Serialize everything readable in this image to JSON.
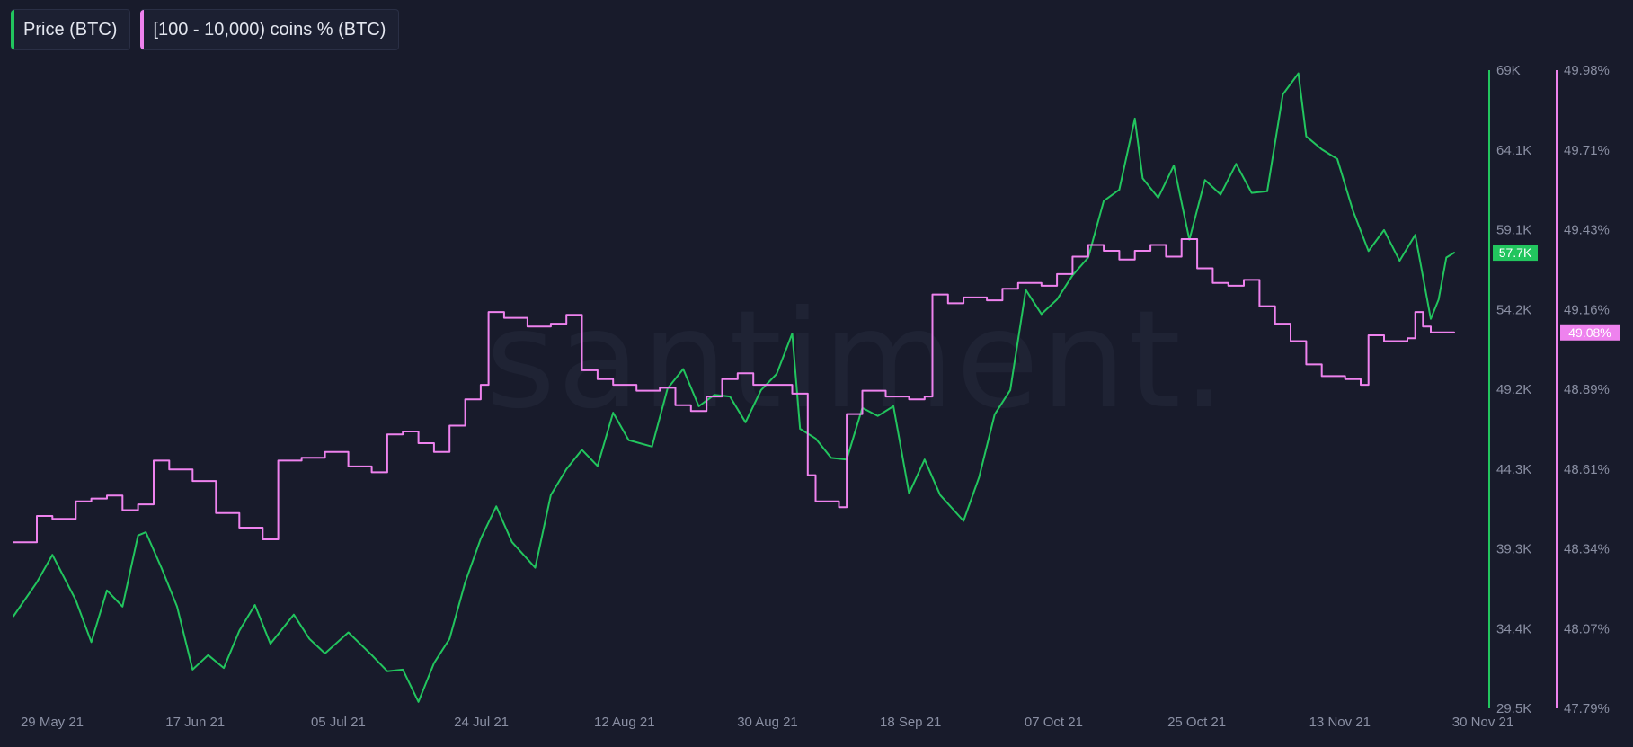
{
  "watermark": "santiment.",
  "colors": {
    "background": "#181b2b",
    "price": "#22c55e",
    "holders": "#ee82ee",
    "tick_text": "#8a8fa3"
  },
  "legend": [
    {
      "label": "Price (BTC)",
      "color": "#22c55e"
    },
    {
      "label": "[100 - 10,000) coins % (BTC)",
      "color": "#ee82ee"
    }
  ],
  "chart_data": {
    "type": "line",
    "title": "",
    "xlabel": "",
    "grid": false,
    "legend_position": "top-left",
    "x_range": [
      "2021-05-29",
      "2021-11-30"
    ],
    "x_ticks": [
      "29 May 21",
      "17 Jun 21",
      "05 Jul 21",
      "24 Jul 21",
      "12 Aug 21",
      "30 Aug 21",
      "18 Sep 21",
      "07 Oct 21",
      "25 Oct 21",
      "13 Nov 21",
      "30 Nov 21"
    ],
    "y_axes": [
      {
        "id": "price",
        "position": "right",
        "range": [
          29500,
          69000
        ],
        "ticks": [
          "69K",
          "64.1K",
          "59.1K",
          "54.2K",
          "49.2K",
          "44.3K",
          "39.3K",
          "34.4K",
          "29.5K"
        ],
        "current_label": "57.7K",
        "current_value": 57700
      },
      {
        "id": "holders",
        "position": "right",
        "range": [
          47.79,
          49.98
        ],
        "ticks": [
          "49.98%",
          "49.71%",
          "49.43%",
          "49.16%",
          "48.89%",
          "48.61%",
          "48.34%",
          "48.07%",
          "47.79%"
        ],
        "current_label": "49.08%",
        "current_value": 49.08
      }
    ],
    "series": [
      {
        "name": "Price (BTC)",
        "axis": "price",
        "color": "#22c55e",
        "points": [
          [
            "2021-05-29",
            35200
          ],
          [
            "2021-06-01",
            37300
          ],
          [
            "2021-06-03",
            39000
          ],
          [
            "2021-06-06",
            36200
          ],
          [
            "2021-06-08",
            33600
          ],
          [
            "2021-06-10",
            36800
          ],
          [
            "2021-06-12",
            35800
          ],
          [
            "2021-06-14",
            40200
          ],
          [
            "2021-06-15",
            40400
          ],
          [
            "2021-06-17",
            38200
          ],
          [
            "2021-06-19",
            35800
          ],
          [
            "2021-06-21",
            31900
          ],
          [
            "2021-06-23",
            32800
          ],
          [
            "2021-06-25",
            32000
          ],
          [
            "2021-06-27",
            34300
          ],
          [
            "2021-06-29",
            35900
          ],
          [
            "2021-07-01",
            33500
          ],
          [
            "2021-07-04",
            35300
          ],
          [
            "2021-07-06",
            33800
          ],
          [
            "2021-07-08",
            32900
          ],
          [
            "2021-07-11",
            34200
          ],
          [
            "2021-07-14",
            32800
          ],
          [
            "2021-07-16",
            31800
          ],
          [
            "2021-07-18",
            31900
          ],
          [
            "2021-07-20",
            29900
          ],
          [
            "2021-07-22",
            32300
          ],
          [
            "2021-07-24",
            33800
          ],
          [
            "2021-07-26",
            37300
          ],
          [
            "2021-07-28",
            40000
          ],
          [
            "2021-07-30",
            42000
          ],
          [
            "2021-08-01",
            39800
          ],
          [
            "2021-08-04",
            38200
          ],
          [
            "2021-08-06",
            42700
          ],
          [
            "2021-08-08",
            44300
          ],
          [
            "2021-08-10",
            45500
          ],
          [
            "2021-08-12",
            44500
          ],
          [
            "2021-08-14",
            47800
          ],
          [
            "2021-08-16",
            46100
          ],
          [
            "2021-08-19",
            45700
          ],
          [
            "2021-08-21",
            49300
          ],
          [
            "2021-08-23",
            50500
          ],
          [
            "2021-08-25",
            48200
          ],
          [
            "2021-08-27",
            48900
          ],
          [
            "2021-08-29",
            48800
          ],
          [
            "2021-08-31",
            47200
          ],
          [
            "2021-09-02",
            49200
          ],
          [
            "2021-09-04",
            50200
          ],
          [
            "2021-09-06",
            52700
          ],
          [
            "2021-09-07",
            46800
          ],
          [
            "2021-09-09",
            46200
          ],
          [
            "2021-09-11",
            45000
          ],
          [
            "2021-09-13",
            44900
          ],
          [
            "2021-09-15",
            48100
          ],
          [
            "2021-09-17",
            47600
          ],
          [
            "2021-09-19",
            48200
          ],
          [
            "2021-09-21",
            42800
          ],
          [
            "2021-09-23",
            44900
          ],
          [
            "2021-09-25",
            42700
          ],
          [
            "2021-09-28",
            41100
          ],
          [
            "2021-09-30",
            43800
          ],
          [
            "2021-10-02",
            47700
          ],
          [
            "2021-10-04",
            49200
          ],
          [
            "2021-10-06",
            55400
          ],
          [
            "2021-10-08",
            53900
          ],
          [
            "2021-10-10",
            54800
          ],
          [
            "2021-10-12",
            56300
          ],
          [
            "2021-10-14",
            57400
          ],
          [
            "2021-10-16",
            60900
          ],
          [
            "2021-10-18",
            61600
          ],
          [
            "2021-10-20",
            66000
          ],
          [
            "2021-10-21",
            62300
          ],
          [
            "2021-10-23",
            61100
          ],
          [
            "2021-10-25",
            63100
          ],
          [
            "2021-10-27",
            58500
          ],
          [
            "2021-10-29",
            62200
          ],
          [
            "2021-10-31",
            61300
          ],
          [
            "2021-11-02",
            63200
          ],
          [
            "2021-11-04",
            61400
          ],
          [
            "2021-11-06",
            61500
          ],
          [
            "2021-11-08",
            67500
          ],
          [
            "2021-11-10",
            68800
          ],
          [
            "2021-11-11",
            64900
          ],
          [
            "2021-11-13",
            64100
          ],
          [
            "2021-11-15",
            63500
          ],
          [
            "2021-11-17",
            60300
          ],
          [
            "2021-11-19",
            57800
          ],
          [
            "2021-11-21",
            59100
          ],
          [
            "2021-11-23",
            57200
          ],
          [
            "2021-11-25",
            58800
          ],
          [
            "2021-11-27",
            53600
          ],
          [
            "2021-11-28",
            54800
          ],
          [
            "2021-11-29",
            57400
          ],
          [
            "2021-11-30",
            57700
          ]
        ]
      },
      {
        "name": "[100 - 10,000) coins % (BTC)",
        "axis": "holders",
        "color": "#ee82ee",
        "points": [
          [
            "2021-05-29",
            48.36
          ],
          [
            "2021-06-01",
            48.45
          ],
          [
            "2021-06-03",
            48.44
          ],
          [
            "2021-06-06",
            48.5
          ],
          [
            "2021-06-08",
            48.51
          ],
          [
            "2021-06-10",
            48.52
          ],
          [
            "2021-06-12",
            48.47
          ],
          [
            "2021-06-14",
            48.49
          ],
          [
            "2021-06-16",
            48.64
          ],
          [
            "2021-06-18",
            48.61
          ],
          [
            "2021-06-21",
            48.57
          ],
          [
            "2021-06-24",
            48.46
          ],
          [
            "2021-06-27",
            48.41
          ],
          [
            "2021-06-30",
            48.37
          ],
          [
            "2021-07-02",
            48.64
          ],
          [
            "2021-07-05",
            48.65
          ],
          [
            "2021-07-08",
            48.67
          ],
          [
            "2021-07-11",
            48.62
          ],
          [
            "2021-07-14",
            48.6
          ],
          [
            "2021-07-16",
            48.73
          ],
          [
            "2021-07-18",
            48.74
          ],
          [
            "2021-07-20",
            48.7
          ],
          [
            "2021-07-22",
            48.67
          ],
          [
            "2021-07-24",
            48.76
          ],
          [
            "2021-07-26",
            48.85
          ],
          [
            "2021-07-28",
            48.9
          ],
          [
            "2021-07-29",
            49.15
          ],
          [
            "2021-07-31",
            49.13
          ],
          [
            "2021-08-03",
            49.1
          ],
          [
            "2021-08-06",
            49.11
          ],
          [
            "2021-08-08",
            49.14
          ],
          [
            "2021-08-10",
            48.95
          ],
          [
            "2021-08-12",
            48.92
          ],
          [
            "2021-08-14",
            48.9
          ],
          [
            "2021-08-17",
            48.88
          ],
          [
            "2021-08-20",
            48.89
          ],
          [
            "2021-08-22",
            48.83
          ],
          [
            "2021-08-24",
            48.81
          ],
          [
            "2021-08-26",
            48.86
          ],
          [
            "2021-08-28",
            48.92
          ],
          [
            "2021-08-30",
            48.94
          ],
          [
            "2021-09-01",
            48.9
          ],
          [
            "2021-09-04",
            48.9
          ],
          [
            "2021-09-06",
            48.87
          ],
          [
            "2021-09-08",
            48.59
          ],
          [
            "2021-09-09",
            48.5
          ],
          [
            "2021-09-12",
            48.48
          ],
          [
            "2021-09-13",
            48.8
          ],
          [
            "2021-09-15",
            48.88
          ],
          [
            "2021-09-18",
            48.86
          ],
          [
            "2021-09-21",
            48.85
          ],
          [
            "2021-09-23",
            48.86
          ],
          [
            "2021-09-24",
            49.21
          ],
          [
            "2021-09-26",
            49.18
          ],
          [
            "2021-09-28",
            49.2
          ],
          [
            "2021-10-01",
            49.19
          ],
          [
            "2021-10-03",
            49.23
          ],
          [
            "2021-10-05",
            49.25
          ],
          [
            "2021-10-08",
            49.24
          ],
          [
            "2021-10-10",
            49.28
          ],
          [
            "2021-10-12",
            49.34
          ],
          [
            "2021-10-14",
            49.38
          ],
          [
            "2021-10-16",
            49.36
          ],
          [
            "2021-10-18",
            49.33
          ],
          [
            "2021-10-20",
            49.36
          ],
          [
            "2021-10-22",
            49.38
          ],
          [
            "2021-10-24",
            49.34
          ],
          [
            "2021-10-26",
            49.4
          ],
          [
            "2021-10-28",
            49.3
          ],
          [
            "2021-10-30",
            49.25
          ],
          [
            "2021-11-01",
            49.24
          ],
          [
            "2021-11-03",
            49.26
          ],
          [
            "2021-11-05",
            49.17
          ],
          [
            "2021-11-07",
            49.11
          ],
          [
            "2021-11-09",
            49.05
          ],
          [
            "2021-11-11",
            48.97
          ],
          [
            "2021-11-13",
            48.93
          ],
          [
            "2021-11-16",
            48.92
          ],
          [
            "2021-11-18",
            48.9
          ],
          [
            "2021-11-19",
            49.07
          ],
          [
            "2021-11-21",
            49.05
          ],
          [
            "2021-11-24",
            49.06
          ],
          [
            "2021-11-25",
            49.15
          ],
          [
            "2021-11-26",
            49.1
          ],
          [
            "2021-11-27",
            49.08
          ],
          [
            "2021-11-30",
            49.08
          ]
        ]
      }
    ]
  }
}
